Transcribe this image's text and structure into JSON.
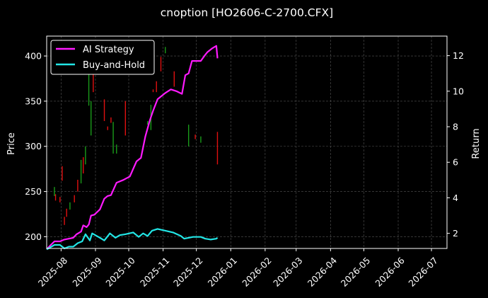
{
  "chart_data": {
    "type": "line",
    "title": "cnoption [HO2606-C-2700.CFX]",
    "xlabel": "",
    "ylabel": "Price",
    "y2label": "Return",
    "xlim": [
      "2025-07-19",
      "2026-07-15"
    ],
    "ylim": [
      187,
      422
    ],
    "y2lim": [
      1.15,
      13.1
    ],
    "x_ticks": [
      "2025-08-01",
      "2025-09-01",
      "2025-10-01",
      "2025-11-01",
      "2025-12-01",
      "2026-01-01",
      "2026-02-01",
      "2026-03-01",
      "2026-04-01",
      "2026-05-01",
      "2026-06-01",
      "2026-07-01"
    ],
    "x_tick_labels": [
      "2025-08",
      "2025-09",
      "2025-10",
      "2025-11",
      "2025-12",
      "2026-01",
      "2026-02",
      "2026-03",
      "2026-04",
      "2026-05",
      "2026-06",
      "2026-07"
    ],
    "y_ticks": [
      200,
      250,
      300,
      350,
      400
    ],
    "y2_ticks": [
      2,
      4,
      6,
      8,
      10,
      12
    ],
    "grid": true,
    "legend_position": "upper-left",
    "colors": {
      "background": "#000000",
      "axes": "#ffffff",
      "grid": "#555555",
      "up": "#1a9a1a",
      "down": "#e01010"
    },
    "series": [
      {
        "name": "AI Strategy",
        "color": "#ff1aff",
        "axis": "right",
        "x": [
          "2025-07-19",
          "2025-07-22",
          "2025-07-26",
          "2025-07-31",
          "2025-08-04",
          "2025-08-08",
          "2025-08-12",
          "2025-08-15",
          "2025-08-19",
          "2025-08-21",
          "2025-08-24",
          "2025-08-26",
          "2025-08-28",
          "2025-08-31",
          "2025-09-05",
          "2025-09-09",
          "2025-09-12",
          "2025-09-15",
          "2025-09-20",
          "2025-09-26",
          "2025-10-02",
          "2025-10-08",
          "2025-10-12",
          "2025-10-16",
          "2025-10-20",
          "2025-10-23",
          "2025-10-27",
          "2025-11-03",
          "2025-11-08",
          "2025-11-13",
          "2025-11-18",
          "2025-11-21",
          "2025-11-24",
          "2025-11-27",
          "2025-12-05",
          "2025-12-09",
          "2025-12-11",
          "2025-12-15",
          "2025-12-19",
          "2025-12-20"
        ],
        "values": [
          1.1,
          1.3,
          1.55,
          1.55,
          1.65,
          1.7,
          1.75,
          1.95,
          2.1,
          2.45,
          2.35,
          2.5,
          3.0,
          3.05,
          3.35,
          3.95,
          4.1,
          4.15,
          4.85,
          5.0,
          5.2,
          6.05,
          6.25,
          7.45,
          8.35,
          8.9,
          9.55,
          9.9,
          10.1,
          10.0,
          9.85,
          10.9,
          11.0,
          11.7,
          11.7,
          12.05,
          12.2,
          12.4,
          12.55,
          11.85
        ]
      },
      {
        "name": "Buy-and-Hold",
        "color": "#22e6e6",
        "axis": "right",
        "x": [
          "2025-07-19",
          "2025-07-22",
          "2025-07-26",
          "2025-07-31",
          "2025-08-04",
          "2025-08-08",
          "2025-08-12",
          "2025-08-16",
          "2025-08-20",
          "2025-08-23",
          "2025-08-27",
          "2025-08-29",
          "2025-09-05",
          "2025-09-09",
          "2025-09-14",
          "2025-09-19",
          "2025-09-23",
          "2025-09-28",
          "2025-10-05",
          "2025-10-10",
          "2025-10-14",
          "2025-10-18",
          "2025-10-22",
          "2025-10-27",
          "2025-11-03",
          "2025-11-10",
          "2025-11-17",
          "2025-11-20",
          "2025-11-24",
          "2025-11-28",
          "2025-12-05",
          "2025-12-09",
          "2025-12-14",
          "2025-12-19",
          "2025-12-20"
        ],
        "values": [
          1.1,
          1.2,
          1.35,
          1.35,
          1.15,
          1.25,
          1.25,
          1.45,
          1.55,
          1.95,
          1.6,
          2.0,
          1.75,
          1.6,
          2.0,
          1.75,
          1.9,
          1.95,
          2.05,
          1.8,
          2.0,
          1.85,
          2.15,
          2.25,
          2.15,
          2.05,
          1.85,
          1.7,
          1.75,
          1.8,
          1.8,
          1.7,
          1.65,
          1.7,
          1.75
        ]
      }
    ],
    "candles": [
      {
        "x": "2025-07-26",
        "y0": 245,
        "y1": 255,
        "dir": "up"
      },
      {
        "x": "2025-07-27",
        "y0": 240,
        "y1": 247,
        "dir": "down"
      },
      {
        "x": "2025-07-31",
        "y0": 238,
        "y1": 244,
        "dir": "down"
      },
      {
        "x": "2025-08-02",
        "y0": 262,
        "y1": 278,
        "dir": "down"
      },
      {
        "x": "2025-08-04",
        "y0": 213,
        "y1": 222,
        "dir": "down"
      },
      {
        "x": "2025-08-06",
        "y0": 222,
        "y1": 231,
        "dir": "down"
      },
      {
        "x": "2025-08-09",
        "y0": 230,
        "y1": 238,
        "dir": "up"
      },
      {
        "x": "2025-08-13",
        "y0": 238,
        "y1": 246,
        "dir": "down"
      },
      {
        "x": "2025-08-16",
        "y0": 250,
        "y1": 263,
        "dir": "down"
      },
      {
        "x": "2025-08-19",
        "y0": 259,
        "y1": 285,
        "dir": "up"
      },
      {
        "x": "2025-08-21",
        "y0": 270,
        "y1": 288,
        "dir": "down"
      },
      {
        "x": "2025-08-23",
        "y0": 280,
        "y1": 300,
        "dir": "up"
      },
      {
        "x": "2025-08-26",
        "y0": 345,
        "y1": 398,
        "dir": "up"
      },
      {
        "x": "2025-08-28",
        "y0": 312,
        "y1": 350,
        "dir": "up"
      },
      {
        "x": "2025-08-30",
        "y0": 360,
        "y1": 390,
        "dir": "down"
      },
      {
        "x": "2025-09-09",
        "y0": 328,
        "y1": 352,
        "dir": "down"
      },
      {
        "x": "2025-09-12",
        "y0": 318,
        "y1": 322,
        "dir": "down"
      },
      {
        "x": "2025-09-15",
        "y0": 326,
        "y1": 332,
        "dir": "down"
      },
      {
        "x": "2025-09-17",
        "y0": 292,
        "y1": 327,
        "dir": "up"
      },
      {
        "x": "2025-09-20",
        "y0": 292,
        "y1": 302,
        "dir": "up"
      },
      {
        "x": "2025-09-28",
        "y0": 312,
        "y1": 350,
        "dir": "down"
      },
      {
        "x": "2025-10-18",
        "y0": 324,
        "y1": 328,
        "dir": "up"
      },
      {
        "x": "2025-10-21",
        "y0": 318,
        "y1": 346,
        "dir": "up"
      },
      {
        "x": "2025-10-23",
        "y0": 360,
        "y1": 363,
        "dir": "down"
      },
      {
        "x": "2025-10-26",
        "y0": 360,
        "y1": 372,
        "dir": "down"
      },
      {
        "x": "2025-10-30",
        "y0": 383,
        "y1": 399,
        "dir": "down"
      },
      {
        "x": "2025-11-03",
        "y0": 403,
        "y1": 410,
        "dir": "up"
      },
      {
        "x": "2025-11-11",
        "y0": 366,
        "y1": 383,
        "dir": "down"
      },
      {
        "x": "2025-11-24",
        "y0": 300,
        "y1": 324,
        "dir": "up"
      },
      {
        "x": "2025-11-30",
        "y0": 308,
        "y1": 313,
        "dir": "down"
      },
      {
        "x": "2025-12-05",
        "y0": 304,
        "y1": 311,
        "dir": "up"
      },
      {
        "x": "2025-12-20",
        "y0": 280,
        "y1": 316,
        "dir": "down"
      }
    ]
  }
}
